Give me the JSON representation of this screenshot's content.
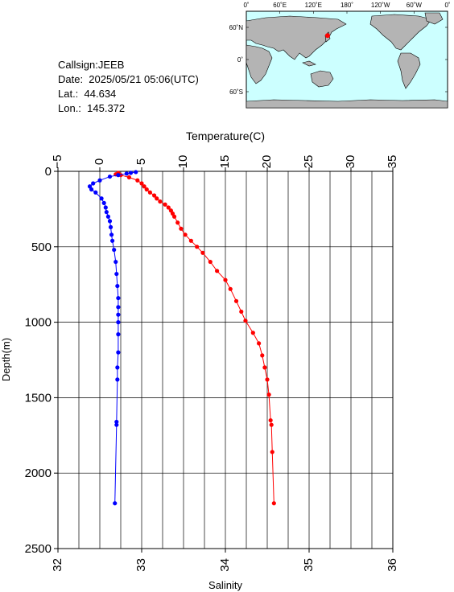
{
  "station": {
    "callsign": "Callsign:JEEB",
    "date": "Date:  2025/05/21 05:06(UTC)",
    "lat": "Lat.:  44.634",
    "lon": "Lon.:  145.372"
  },
  "map": {
    "lon_labels": [
      "0˚",
      "60˚E",
      "120˚E",
      "180˚",
      "120˚W",
      "60˚W",
      "0˚"
    ],
    "lat_labels": [
      "60˚N",
      "0˚",
      "60˚S"
    ],
    "ocean_color": "#ccffff",
    "land_color": "#b4b4b4",
    "marker_color": "#ff0000",
    "station_lon": 145.372,
    "station_lat": 44.634
  },
  "chart_data": {
    "type": "line",
    "ylabel": "Depth(m)",
    "ylim": [
      0,
      2500
    ],
    "yticks": [
      "0",
      "500",
      "1000",
      "1500",
      "2000",
      "2500"
    ],
    "y_inverted": true,
    "grid": true,
    "top_axis": {
      "label": "Temperature(C)",
      "range": [
        -5,
        35
      ],
      "ticks": [
        "−5",
        "0",
        "5",
        "10",
        "15",
        "20",
        "25",
        "30",
        "35"
      ]
    },
    "bottom_axis": {
      "label": "Salinity",
      "range": [
        32,
        36
      ],
      "ticks": [
        "32",
        "33",
        "34",
        "35",
        "36"
      ]
    },
    "series": [
      {
        "axis": "temperature",
        "color": "#ff0000",
        "points": [
          [
            2.2,
            10
          ],
          [
            1.9,
            20
          ],
          [
            2.5,
            25
          ],
          [
            3.5,
            40
          ],
          [
            4.5,
            60
          ],
          [
            5.0,
            80
          ],
          [
            5.3,
            100
          ],
          [
            5.6,
            120
          ],
          [
            6.0,
            140
          ],
          [
            6.5,
            160
          ],
          [
            6.8,
            180
          ],
          [
            7.2,
            200
          ],
          [
            7.8,
            220
          ],
          [
            8.2,
            240
          ],
          [
            8.5,
            260
          ],
          [
            8.7,
            280
          ],
          [
            8.9,
            300
          ],
          [
            9.3,
            340
          ],
          [
            9.7,
            380
          ],
          [
            10.2,
            420
          ],
          [
            10.9,
            460
          ],
          [
            11.6,
            500
          ],
          [
            12.3,
            540
          ],
          [
            13.2,
            600
          ],
          [
            14.0,
            660
          ],
          [
            15.0,
            720
          ],
          [
            15.6,
            780
          ],
          [
            16.3,
            860
          ],
          [
            16.9,
            930
          ],
          [
            17.4,
            990
          ],
          [
            18.3,
            1070
          ],
          [
            19.0,
            1140
          ],
          [
            19.4,
            1220
          ],
          [
            19.7,
            1300
          ],
          [
            20.0,
            1380
          ],
          [
            20.2,
            1480
          ],
          [
            20.4,
            1650
          ],
          [
            20.5,
            1680
          ],
          [
            20.6,
            1860
          ],
          [
            20.8,
            2200
          ]
        ]
      },
      {
        "axis": "salinity",
        "color": "#0000ff",
        "points": [
          [
            32.93,
            5
          ],
          [
            32.87,
            10
          ],
          [
            32.82,
            15
          ],
          [
            32.72,
            25
          ],
          [
            32.62,
            35
          ],
          [
            32.5,
            60
          ],
          [
            32.42,
            80
          ],
          [
            32.38,
            100
          ],
          [
            32.4,
            120
          ],
          [
            32.45,
            140
          ],
          [
            32.52,
            180
          ],
          [
            32.55,
            210
          ],
          [
            32.57,
            240
          ],
          [
            32.58,
            270
          ],
          [
            32.6,
            300
          ],
          [
            32.62,
            330
          ],
          [
            32.63,
            370
          ],
          [
            32.64,
            420
          ],
          [
            32.65,
            460
          ],
          [
            32.67,
            520
          ],
          [
            32.69,
            600
          ],
          [
            32.7,
            680
          ],
          [
            32.71,
            760
          ],
          [
            32.72,
            840
          ],
          [
            32.72,
            900
          ],
          [
            32.72,
            950
          ],
          [
            32.72,
            1000
          ],
          [
            32.72,
            1080
          ],
          [
            32.72,
            1200
          ],
          [
            32.71,
            1300
          ],
          [
            32.71,
            1380
          ],
          [
            32.7,
            1660
          ],
          [
            32.7,
            1680
          ],
          [
            32.68,
            2200
          ]
        ]
      }
    ]
  }
}
